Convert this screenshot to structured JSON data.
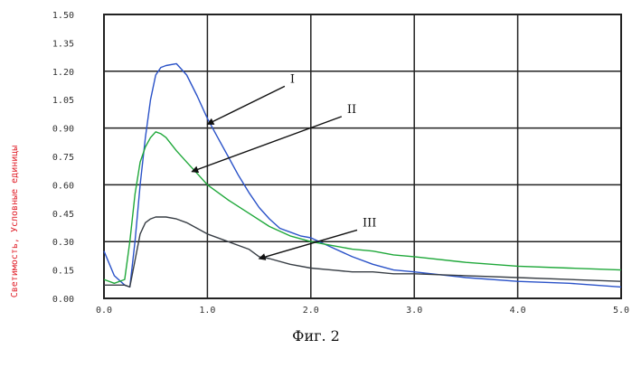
{
  "chart_data": {
    "type": "line",
    "title": "",
    "xlabel": "",
    "ylabel": "Светимость, Условные единицы",
    "xlim": [
      0,
      5.0
    ],
    "ylim": [
      0,
      1.5
    ],
    "grid": true,
    "x_ticks": [
      "0.0",
      "1.0",
      "2.0",
      "3.0",
      "4.0",
      "5.0"
    ],
    "y_ticks": [
      "0.00",
      "0.15",
      "0.30",
      "0.45",
      "0.60",
      "0.75",
      "0.90",
      "1.05",
      "1.20",
      "1.35",
      "1.50"
    ],
    "series": [
      {
        "name": "I",
        "color": "#2a52c8",
        "x": [
          0.0,
          0.1,
          0.2,
          0.25,
          0.3,
          0.35,
          0.4,
          0.45,
          0.5,
          0.55,
          0.6,
          0.7,
          0.8,
          0.9,
          1.0,
          1.1,
          1.2,
          1.3,
          1.4,
          1.5,
          1.6,
          1.7,
          1.8,
          1.9,
          2.0,
          2.2,
          2.4,
          2.6,
          2.8,
          3.0,
          3.5,
          4.0,
          4.5,
          5.0
        ],
        "y": [
          0.25,
          0.12,
          0.07,
          0.06,
          0.3,
          0.6,
          0.85,
          1.05,
          1.18,
          1.22,
          1.23,
          1.24,
          1.18,
          1.07,
          0.95,
          0.85,
          0.75,
          0.65,
          0.56,
          0.48,
          0.42,
          0.37,
          0.35,
          0.33,
          0.32,
          0.27,
          0.22,
          0.18,
          0.15,
          0.14,
          0.11,
          0.09,
          0.08,
          0.06
        ]
      },
      {
        "name": "II",
        "color": "#1fa83a",
        "x": [
          0.0,
          0.1,
          0.2,
          0.25,
          0.3,
          0.35,
          0.4,
          0.45,
          0.5,
          0.55,
          0.6,
          0.7,
          0.8,
          0.9,
          1.0,
          1.2,
          1.4,
          1.6,
          1.8,
          2.0,
          2.2,
          2.4,
          2.6,
          2.8,
          3.0,
          3.5,
          4.0,
          4.5,
          5.0
        ],
        "y": [
          0.1,
          0.08,
          0.1,
          0.3,
          0.55,
          0.72,
          0.8,
          0.85,
          0.88,
          0.87,
          0.85,
          0.78,
          0.72,
          0.66,
          0.6,
          0.52,
          0.45,
          0.38,
          0.33,
          0.3,
          0.28,
          0.26,
          0.25,
          0.23,
          0.22,
          0.19,
          0.17,
          0.16,
          0.15
        ]
      },
      {
        "name": "III",
        "color": "#383e45",
        "x": [
          0.0,
          0.1,
          0.2,
          0.25,
          0.3,
          0.35,
          0.4,
          0.45,
          0.5,
          0.6,
          0.7,
          0.8,
          0.9,
          1.0,
          1.2,
          1.4,
          1.5,
          1.6,
          1.8,
          2.0,
          2.2,
          2.4,
          2.6,
          2.8,
          3.0,
          3.5,
          4.0,
          4.5,
          5.0
        ],
        "y": [
          0.07,
          0.07,
          0.07,
          0.06,
          0.2,
          0.34,
          0.4,
          0.42,
          0.43,
          0.43,
          0.42,
          0.4,
          0.37,
          0.34,
          0.3,
          0.26,
          0.22,
          0.21,
          0.18,
          0.16,
          0.15,
          0.14,
          0.14,
          0.13,
          0.13,
          0.12,
          0.11,
          0.1,
          0.09
        ]
      }
    ],
    "annotations": [
      {
        "label": "I",
        "series": "I",
        "point_x": 1.0,
        "point_y": 0.92,
        "text_x": 1.8,
        "text_y": 1.14
      },
      {
        "label": "II",
        "series": "II",
        "point_x": 0.85,
        "point_y": 0.67,
        "text_x": 2.35,
        "text_y": 0.98
      },
      {
        "label": "III",
        "series": "III",
        "point_x": 1.5,
        "point_y": 0.21,
        "text_x": 2.5,
        "text_y": 0.38
      }
    ]
  },
  "caption": "Фиг. 2"
}
